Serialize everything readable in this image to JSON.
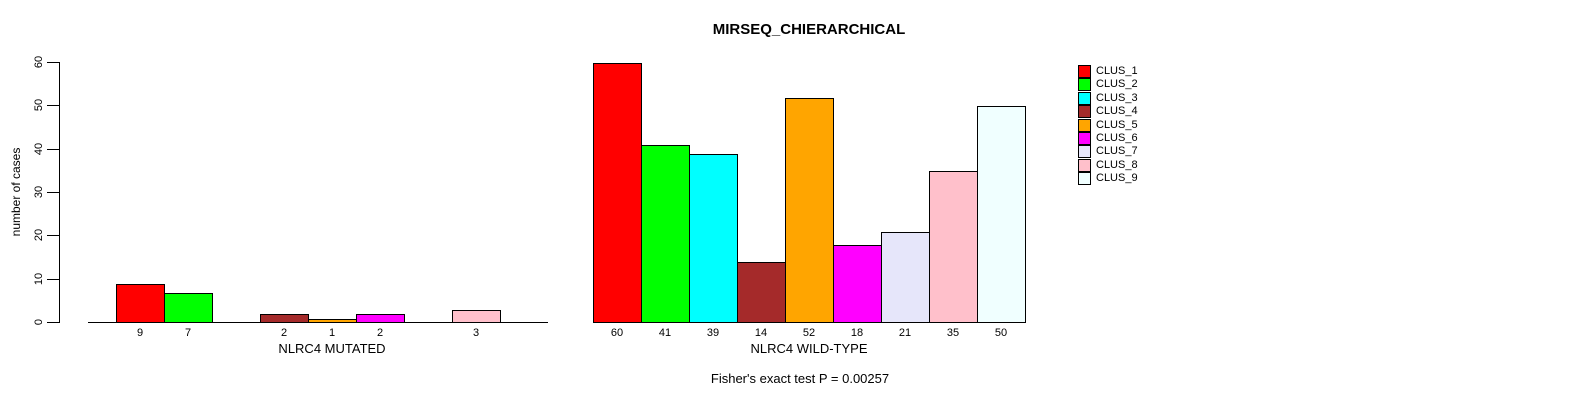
{
  "chart_data": {
    "type": "bar",
    "title": "MIRSEQ_CHIERARCHICAL",
    "ylabel": "number of cases",
    "ylim": [
      0,
      60
    ],
    "yticks": [
      0,
      10,
      20,
      30,
      40,
      50,
      60
    ],
    "grid": false,
    "legend_position": "right",
    "categories": [
      "CLUS_1",
      "CLUS_2",
      "CLUS_3",
      "CLUS_4",
      "CLUS_5",
      "CLUS_6",
      "CLUS_7",
      "CLUS_8",
      "CLUS_9"
    ],
    "colors": [
      "#FF0000",
      "#00FF00",
      "#00FFFF",
      "#A52A2A",
      "#FFA500",
      "#FF00FF",
      "#E6E6FA",
      "#FFC0CB",
      "#F0FFFF"
    ],
    "groups": [
      {
        "xlabel": "NLRC4 MUTATED",
        "values": [
          9,
          7,
          0,
          2,
          1,
          2,
          0,
          3,
          0
        ]
      },
      {
        "xlabel": "NLRC4 WILD-TYPE",
        "values": [
          60,
          41,
          39,
          14,
          52,
          18,
          21,
          35,
          50
        ]
      }
    ],
    "annotation": "Fisher's exact test P = 0.00257"
  }
}
